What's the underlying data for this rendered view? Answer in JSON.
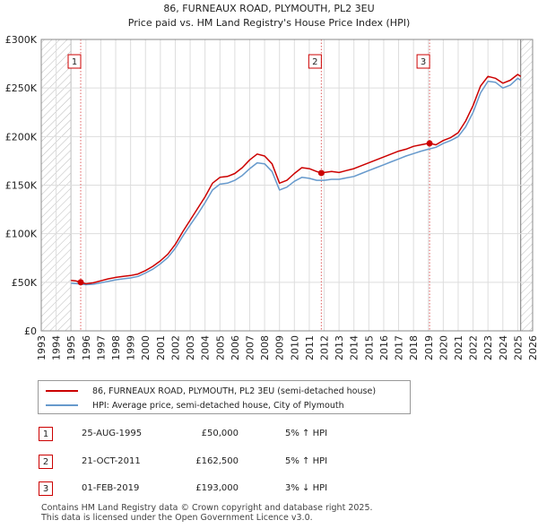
{
  "chart_data": {
    "type": "line",
    "title": "86, FURNEAUX ROAD, PLYMOUTH, PL2 3EU",
    "subtitle": "Price paid vs. HM Land Registry's House Price Index (HPI)",
    "xlabel": "",
    "ylabel": "",
    "xlim": [
      1993,
      2026
    ],
    "ylim": [
      0,
      300000
    ],
    "x_ticks": [
      "1993",
      "1994",
      "1995",
      "1996",
      "1997",
      "1998",
      "1999",
      "2000",
      "2001",
      "2002",
      "2003",
      "2004",
      "2005",
      "2006",
      "2007",
      "2008",
      "2009",
      "2010",
      "2011",
      "2012",
      "2013",
      "2014",
      "2015",
      "2016",
      "2017",
      "2018",
      "2019",
      "2020",
      "2021",
      "2022",
      "2023",
      "2024",
      "2025",
      "2026"
    ],
    "y_ticks": [
      {
        "value": 0,
        "label": "£0"
      },
      {
        "value": 50000,
        "label": "£50K"
      },
      {
        "value": 100000,
        "label": "£100K"
      },
      {
        "value": 150000,
        "label": "£150K"
      },
      {
        "value": 200000,
        "label": "£200K"
      },
      {
        "value": 250000,
        "label": "£250K"
      },
      {
        "value": 300000,
        "label": "£300K"
      }
    ],
    "grid": true,
    "hatched_ranges": [
      [
        1993,
        1995.0
      ],
      [
        2025.2,
        2026
      ]
    ],
    "series": [
      {
        "name": "86, FURNEAUX ROAD, PLYMOUTH, PL2 3EU (semi-detached house)",
        "color": "#cc0000",
        "x": [
          1995.0,
          1995.3,
          1995.65,
          1996.0,
          1996.5,
          1997.0,
          1997.5,
          1998.0,
          1998.5,
          1999.0,
          1999.5,
          2000.0,
          2000.5,
          2001.0,
          2001.5,
          2002.0,
          2002.5,
          2003.0,
          2003.5,
          2004.0,
          2004.5,
          2005.0,
          2005.5,
          2006.0,
          2006.5,
          2007.0,
          2007.5,
          2008.0,
          2008.5,
          2009.0,
          2009.5,
          2010.0,
          2010.5,
          2011.0,
          2011.5,
          2011.81,
          2012.0,
          2012.5,
          2013.0,
          2013.5,
          2014.0,
          2014.5,
          2015.0,
          2015.5,
          2016.0,
          2016.5,
          2017.0,
          2017.5,
          2018.0,
          2018.5,
          2019.0,
          2019.08,
          2019.5,
          2020.0,
          2020.5,
          2021.0,
          2021.5,
          2022.0,
          2022.5,
          2023.0,
          2023.5,
          2024.0,
          2024.5,
          2025.0,
          2025.2
        ],
        "y": [
          52000,
          51500,
          50000,
          48500,
          49500,
          51500,
          53500,
          55000,
          56000,
          57000,
          58500,
          62000,
          66500,
          72000,
          79000,
          89000,
          102000,
          114000,
          126000,
          138000,
          152000,
          158000,
          159000,
          162000,
          168000,
          176000,
          182000,
          180000,
          172000,
          152000,
          155000,
          162000,
          168000,
          167000,
          164000,
          162500,
          163000,
          164000,
          163000,
          165000,
          167000,
          170000,
          173000,
          176000,
          179000,
          182000,
          185000,
          187000,
          190000,
          191500,
          193000,
          193000,
          191500,
          196000,
          199000,
          204000,
          216000,
          232000,
          252000,
          262000,
          260000,
          255000,
          258000,
          264000,
          262000
        ]
      },
      {
        "name": "HPI: Average price, semi-detached house, City of Plymouth",
        "color": "#6699cc",
        "x": [
          1995.0,
          1995.5,
          1996.0,
          1996.5,
          1997.0,
          1997.5,
          1998.0,
          1998.5,
          1999.0,
          1999.5,
          2000.0,
          2000.5,
          2001.0,
          2001.5,
          2002.0,
          2002.5,
          2003.0,
          2003.5,
          2004.0,
          2004.5,
          2005.0,
          2005.5,
          2006.0,
          2006.5,
          2007.0,
          2007.5,
          2008.0,
          2008.5,
          2009.0,
          2009.5,
          2010.0,
          2010.5,
          2011.0,
          2011.5,
          2012.0,
          2012.5,
          2013.0,
          2013.5,
          2014.0,
          2014.5,
          2015.0,
          2015.5,
          2016.0,
          2016.5,
          2017.0,
          2017.5,
          2018.0,
          2018.5,
          2019.0,
          2019.5,
          2020.0,
          2020.5,
          2021.0,
          2021.5,
          2022.0,
          2022.5,
          2023.0,
          2023.5,
          2024.0,
          2024.5,
          2025.0,
          2025.2
        ],
        "y": [
          49000,
          48500,
          47500,
          48000,
          49500,
          51000,
          52500,
          53500,
          54500,
          56000,
          59500,
          63500,
          69000,
          75500,
          85000,
          97500,
          109000,
          120000,
          132000,
          145000,
          151000,
          152000,
          155000,
          160000,
          167000,
          173000,
          172000,
          164000,
          145000,
          148000,
          154000,
          158000,
          157000,
          155000,
          155000,
          156000,
          156000,
          157500,
          159000,
          162000,
          165000,
          168000,
          171000,
          174000,
          177000,
          180000,
          182500,
          185000,
          187000,
          189000,
          193000,
          196000,
          200000,
          210000,
          225000,
          245000,
          257000,
          256000,
          250000,
          253000,
          260000,
          258000
        ]
      }
    ],
    "sales": [
      {
        "n": "1",
        "x": 1995.65,
        "price": 50000
      },
      {
        "n": "2",
        "x": 2011.81,
        "price": 162500
      },
      {
        "n": "3",
        "x": 2019.08,
        "price": 193000
      }
    ]
  },
  "legend": {
    "property_label": "86, FURNEAUX ROAD, PLYMOUTH, PL2 3EU (semi-detached house)",
    "hpi_label": "HPI: Average price, semi-detached house, City of Plymouth"
  },
  "sales_table": [
    {
      "n": "1",
      "date": "25-AUG-1995",
      "price": "£50,000",
      "hpi": "5% ↑ HPI"
    },
    {
      "n": "2",
      "date": "21-OCT-2011",
      "price": "£162,500",
      "hpi": "5% ↑ HPI"
    },
    {
      "n": "3",
      "date": "01-FEB-2019",
      "price": "£193,000",
      "hpi": "3% ↓ HPI"
    }
  ],
  "footer": {
    "line1": "Contains HM Land Registry data © Crown copyright and database right 2025.",
    "line2": "This data is licensed under the Open Government Licence v3.0."
  },
  "colors": {
    "property": "#cc0000",
    "hpi": "#6699cc",
    "grid": "#dddddd"
  }
}
